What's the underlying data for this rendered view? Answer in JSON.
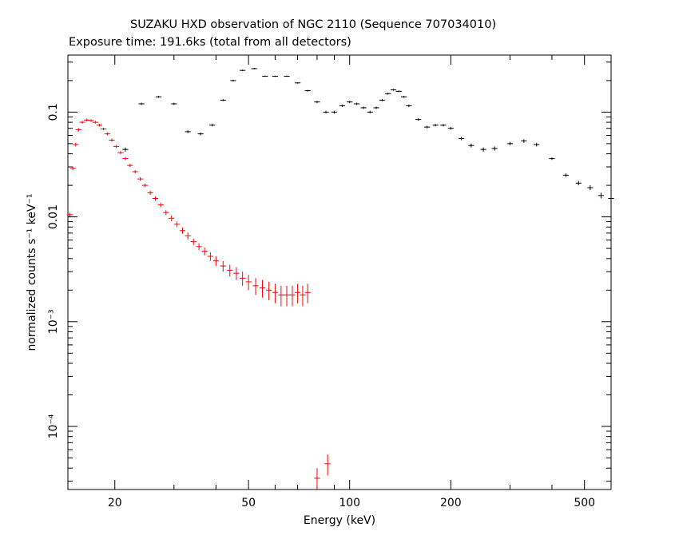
{
  "title": "SUZAKU HXD observation of NGC 2110 (Sequence 707034010)",
  "subtitle": "Exposure time: 191.6ks (total from all detectors)",
  "chart_data": {
    "type": "scatter",
    "title": "SUZAKU HXD observation of NGC 2110 (Sequence 707034010)",
    "subtitle": "Exposure time: 191.6ks (total from all detectors)",
    "xlabel": "Energy (keV)",
    "ylabel": "normalized counts s⁻¹ keV⁻¹",
    "xscale": "log",
    "yscale": "log",
    "xlim": [
      14.5,
      600
    ],
    "ylim": [
      2.5e-05,
      0.35
    ],
    "x_ticks": [
      20,
      50,
      100,
      200,
      500
    ],
    "x_tick_labels": [
      "20",
      "50",
      "100",
      "200",
      "500"
    ],
    "y_ticks": [
      0.0001,
      0.001,
      0.01,
      0.1
    ],
    "y_tick_labels": [
      "10⁻⁴",
      "10⁻³",
      "0.01",
      "0.1"
    ],
    "grid": false,
    "legend": "none",
    "series": [
      {
        "color": "#ff0000",
        "x": [
          14.7,
          15.0,
          15.3,
          15.6,
          16.0,
          16.5,
          17.0,
          17.5,
          18.0,
          18.5,
          19.0,
          19.6,
          20.2,
          20.8,
          21.5,
          22.2,
          23.0,
          23.8,
          24.6,
          25.5,
          26.4,
          27.4,
          28.4,
          29.5,
          30.6,
          31.8,
          33.0,
          34.3,
          35.6,
          37.0,
          38.5,
          40.0,
          42.0,
          44.0,
          46.0,
          48.0,
          50.0,
          52.5,
          55.0,
          57.5,
          60.0,
          62.5,
          65.0,
          67.5,
          70.0,
          72.5,
          75.0,
          80.0,
          86.0
        ],
        "y": [
          0.0105,
          0.029,
          0.049,
          0.068,
          0.08,
          0.084,
          0.083,
          0.08,
          0.075,
          0.069,
          0.062,
          0.054,
          0.047,
          0.041,
          0.036,
          0.031,
          0.027,
          0.023,
          0.02,
          0.017,
          0.015,
          0.013,
          0.011,
          0.0097,
          0.0085,
          0.0074,
          0.0066,
          0.0058,
          0.0052,
          0.0047,
          0.0042,
          0.0038,
          0.0034,
          0.0031,
          0.0029,
          0.0026,
          0.0024,
          0.0022,
          0.0021,
          0.002,
          0.0019,
          0.0018,
          0.0018,
          0.0018,
          0.0019,
          0.0018,
          0.0019,
          3.2e-05,
          4.4e-05
        ],
        "yerr": [
          0.0004,
          0.0012,
          0.002,
          0.0025,
          0.0025,
          0.0025,
          0.0025,
          0.0025,
          0.0022,
          0.002,
          0.002,
          0.0018,
          0.0016,
          0.0014,
          0.0012,
          0.0011,
          0.001,
          0.0009,
          0.0008,
          0.0008,
          0.0007,
          0.0007,
          0.0006,
          0.0006,
          0.0005,
          0.0005,
          0.0005,
          0.0004,
          0.0004,
          0.0004,
          0.0004,
          0.0004,
          0.0004,
          0.0004,
          0.0004,
          0.0004,
          0.0004,
          0.0004,
          0.0004,
          0.0004,
          0.0004,
          0.0004,
          0.0004,
          0.0004,
          0.0004,
          0.0004,
          0.0004,
          8e-06,
          1e-05
        ]
      },
      {
        "color": "#000000",
        "x": [
          21.5,
          24.0,
          27.0,
          30.0,
          33.0,
          36.0,
          39.0,
          42.0,
          45.0,
          48.0,
          52.0,
          56.0,
          60.0,
          65.0,
          70.0,
          75.0,
          80.0,
          85.0,
          90.0,
          95.0,
          100.0,
          105.0,
          110.0,
          115.0,
          120.0,
          125.0,
          130.0,
          135.0,
          140.0,
          145.0,
          150.0,
          160.0,
          170.0,
          180.0,
          190.0,
          200.0,
          215.0,
          230.0,
          250.0,
          270.0,
          300.0,
          330.0,
          360.0,
          400.0,
          440.0,
          480.0,
          520.0,
          560.0,
          600.0
        ],
        "y": [
          0.044,
          0.12,
          0.14,
          0.12,
          0.065,
          0.062,
          0.075,
          0.13,
          0.2,
          0.25,
          0.26,
          0.22,
          0.22,
          0.22,
          0.19,
          0.16,
          0.125,
          0.1,
          0.1,
          0.115,
          0.125,
          0.12,
          0.11,
          0.1,
          0.11,
          0.13,
          0.15,
          0.163,
          0.158,
          0.14,
          0.115,
          0.085,
          0.072,
          0.075,
          0.075,
          0.07,
          0.056,
          0.048,
          0.044,
          0.045,
          0.05,
          0.053,
          0.049,
          0.036,
          0.025,
          0.021,
          0.019,
          0.016,
          0.015
        ],
        "yerr": [
          0.002,
          0.003,
          0.003,
          0.003,
          0.002,
          0.002,
          0.002,
          0.003,
          0.004,
          0.004,
          0.004,
          0.003,
          0.003,
          0.003,
          0.003,
          0.003,
          0.003,
          0.003,
          0.003,
          0.003,
          0.003,
          0.003,
          0.003,
          0.003,
          0.003,
          0.003,
          0.003,
          0.003,
          0.003,
          0.003,
          0.003,
          0.002,
          0.002,
          0.002,
          0.002,
          0.002,
          0.002,
          0.002,
          0.002,
          0.002,
          0.002,
          0.002,
          0.002,
          0.001,
          0.001,
          0.001,
          0.001,
          0.001,
          0.001
        ]
      }
    ]
  }
}
